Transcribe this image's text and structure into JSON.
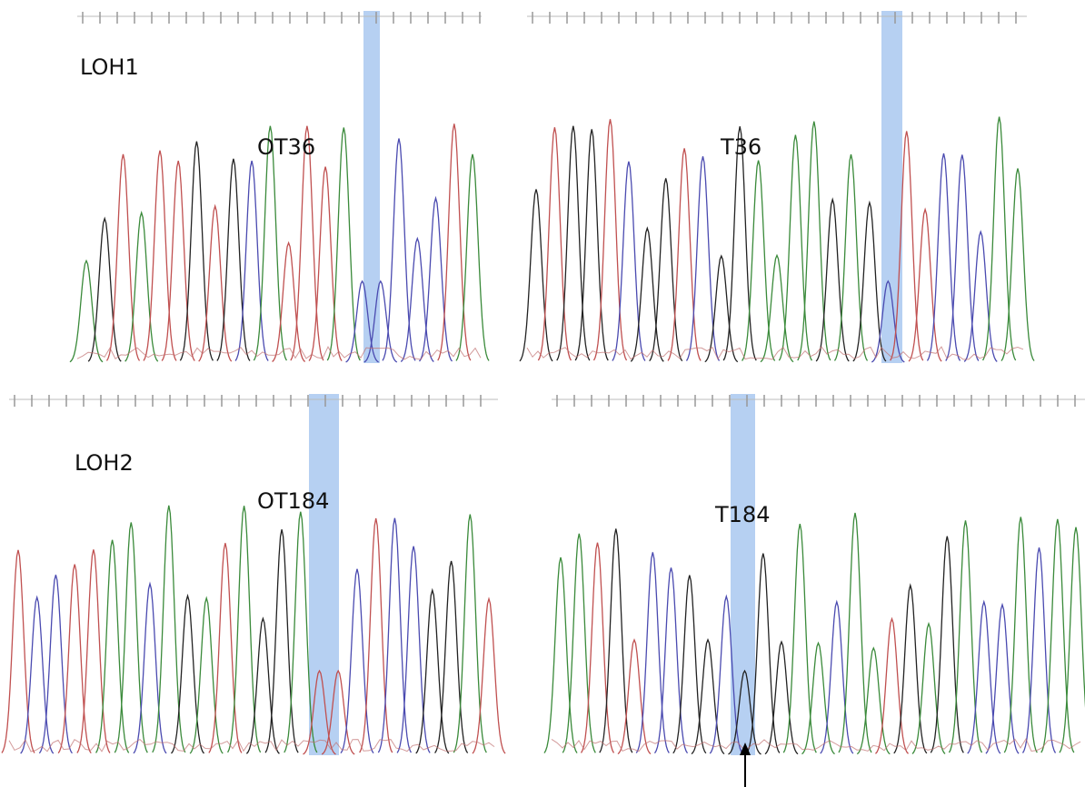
{
  "panels": [
    {
      "group": "LOH1",
      "sample": "OT36"
    },
    {
      "sample": "T36"
    },
    {
      "group": "LOH2",
      "sample": "OT184"
    },
    {
      "sample": "T184"
    }
  ]
}
